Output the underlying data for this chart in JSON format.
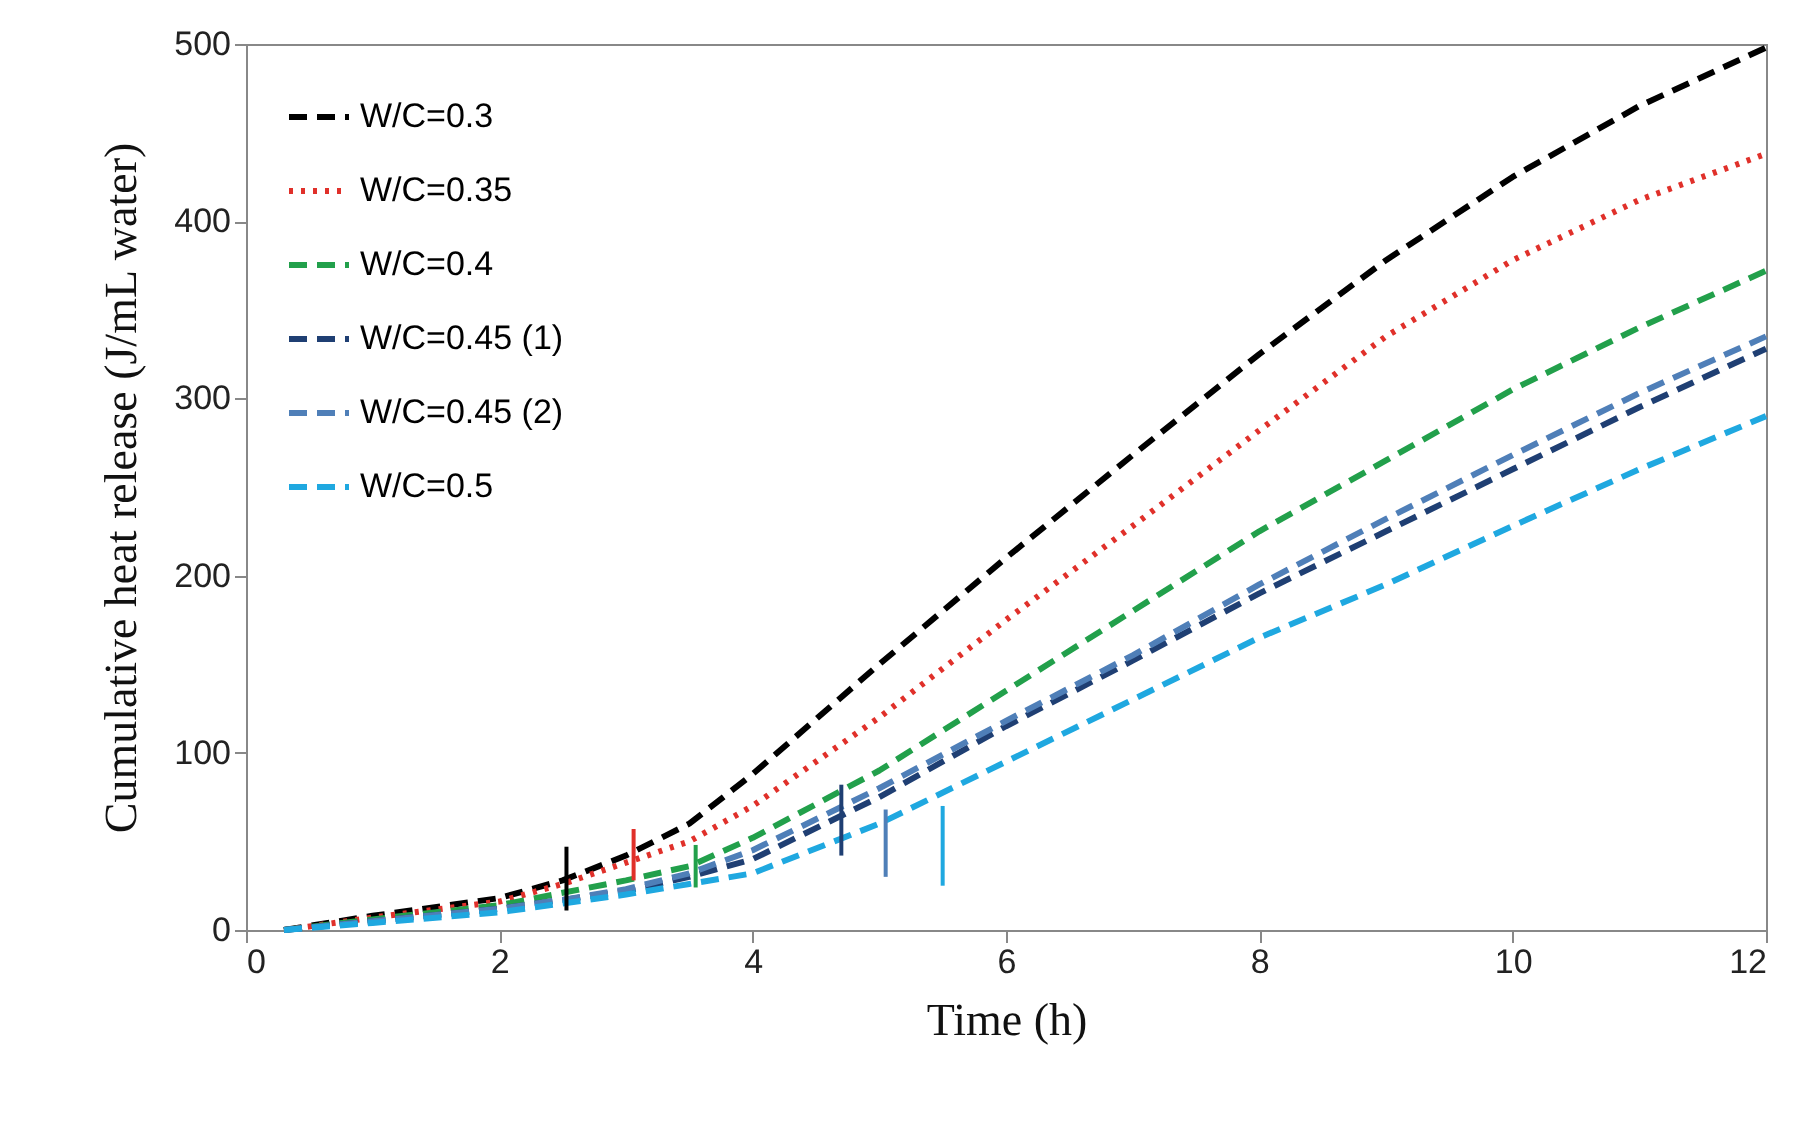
{
  "chart_data": {
    "type": "line",
    "xlabel": "Time (h)",
    "ylabel": "Cumulative heat release (J/mL water)",
    "x": [
      0.3,
      1,
      2,
      2.5,
      3,
      3.5,
      4,
      5,
      6,
      7,
      8,
      9,
      10,
      11,
      12
    ],
    "xlim": [
      0,
      12
    ],
    "xticks": [
      0,
      2,
      4,
      6,
      8,
      10,
      12
    ],
    "ylim": [
      0,
      500
    ],
    "yticks": [
      0,
      100,
      200,
      300,
      400,
      500
    ],
    "grid": false,
    "legend": "top left",
    "marker": "none",
    "series": [
      {
        "name": "W/C=0.3",
        "color": "#000000",
        "line_style": "dashed",
        "values": [
          0,
          8,
          18,
          28,
          42,
          60,
          88,
          150,
          210,
          268,
          325,
          378,
          425,
          465,
          498
        ]
      },
      {
        "name": "W/C=0.35",
        "color": "#e0302a",
        "line_style": "dotted",
        "values": [
          0,
          7,
          16,
          26,
          38,
          50,
          70,
          120,
          175,
          228,
          282,
          335,
          378,
          412,
          438
        ]
      },
      {
        "name": "W/C=0.4",
        "color": "#22a04b",
        "line_style": "dashed",
        "values": [
          0,
          6,
          14,
          21,
          28,
          36,
          52,
          90,
          135,
          180,
          225,
          265,
          305,
          340,
          372
        ]
      },
      {
        "name": "W/C=0.45 (1)",
        "color": "#1f3f73",
        "line_style": "dashed",
        "values": [
          0,
          5,
          12,
          17,
          22,
          30,
          40,
          75,
          115,
          152,
          190,
          225,
          260,
          295,
          328
        ]
      },
      {
        "name": "W/C=0.45 (2)",
        "color": "#4f7fb8",
        "line_style": "dashed",
        "values": [
          0,
          5,
          12,
          17,
          23,
          32,
          45,
          80,
          118,
          155,
          195,
          232,
          268,
          303,
          335
        ]
      },
      {
        "name": "W/C=0.5",
        "color": "#1fa8e0",
        "line_style": "dashed",
        "values": [
          0,
          4,
          10,
          15,
          20,
          26,
          32,
          60,
          95,
          130,
          165,
          195,
          228,
          260,
          290
        ]
      },
      {
        "type": "line",
        "color": "#000000",
        "line_style": "solid",
        "x": [
          2.53,
          2.53
        ],
        "values": [
          11,
          47
        ]
      },
      {
        "type": "line",
        "color": "#e0302a",
        "line_style": "solid",
        "x": [
          3.06,
          3.06
        ],
        "values": [
          28,
          57
        ]
      },
      {
        "type": "line",
        "color": "#22a04b",
        "line_style": "solid",
        "x": [
          3.55,
          3.55
        ],
        "values": [
          24,
          48
        ]
      },
      {
        "type": "line",
        "color": "#1f3f73",
        "line_style": "solid",
        "x": [
          4.7,
          4.7
        ],
        "values": [
          42,
          82
        ]
      },
      {
        "type": "line",
        "color": "#4f7fb8",
        "line_style": "solid",
        "x": [
          5.05,
          5.05
        ],
        "values": [
          30,
          68
        ]
      },
      {
        "type": "line",
        "color": "#1fa8e0",
        "line_style": "solid",
        "x": [
          5.5,
          5.5
        ],
        "values": [
          25,
          70
        ]
      }
    ]
  }
}
